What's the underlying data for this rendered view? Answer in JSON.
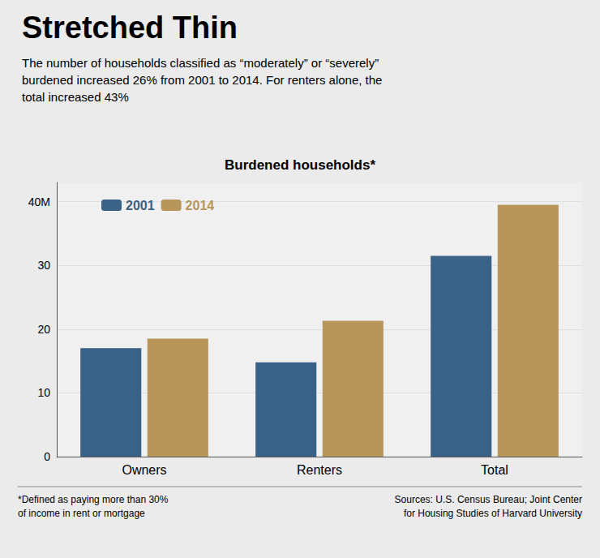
{
  "chart_data": {
    "type": "bar",
    "title": "Stretched Thin",
    "subtitle": "The number of households classified as “moderately” or “severely”\nburdened increased 26% from 2001 to 2014. For renters alone, the\ntotal increased 43%",
    "annotations": [
      "Burdened households*",
      "*Defined as paying more than 30%\nof income in rent or mortgage",
      "Sources: U.S. Census Bureau; Joint Center\nfor Housing Studies of Harvard University"
    ],
    "categories": [
      "Owners",
      "Renters",
      "Total"
    ],
    "series": [
      {
        "name": "2001",
        "color": "#3a6186",
        "values": [
          17.0,
          14.8,
          31.5
        ]
      },
      {
        "name": "2014",
        "color": "#b8965a",
        "values": [
          18.5,
          21.3,
          39.5
        ]
      }
    ],
    "ylim": [
      0,
      43
    ],
    "yticks": [
      0,
      10,
      20,
      30,
      {
        "value": 40,
        "label": "40M"
      }
    ],
    "grid": true,
    "legend": "upper left"
  }
}
